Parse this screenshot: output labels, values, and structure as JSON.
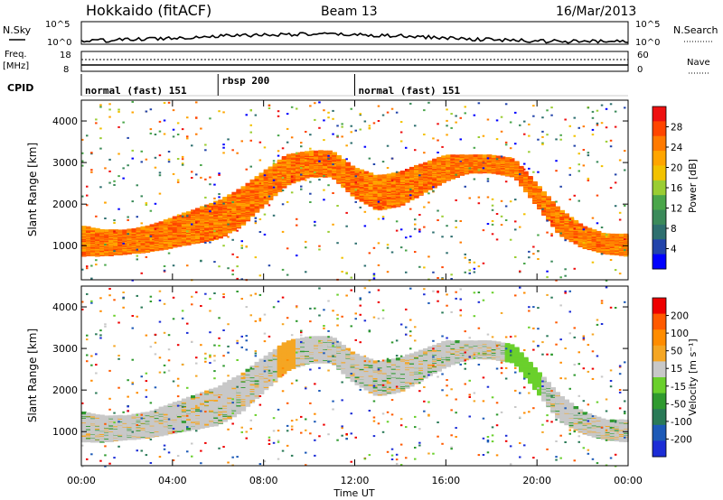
{
  "header": {
    "title": "Hokkaido (fitACF)",
    "beam": "Beam 13",
    "date": "16/Mar/2013"
  },
  "top_panels": {
    "nsky_label": "N.Sky",
    "nsky_ticks": [
      "10^5",
      "10^0"
    ],
    "nsearch_label": "N.Search",
    "nsearch_ticks": [
      "10^5",
      "10^0"
    ],
    "freq_label_1": "Freq.",
    "freq_label_2": "[MHz]",
    "freq_ticks": [
      "18",
      "8"
    ],
    "nave_label": "Nave",
    "nave_ticks": [
      "60",
      "0"
    ],
    "cpid_label": "CPID",
    "cpid_segments": [
      {
        "label": "normal (fast) 151",
        "start_hour": 0,
        "end_hour": 6.0
      },
      {
        "label": "rbsp 200",
        "start_hour": 6.0,
        "end_hour": 12.0
      },
      {
        "label": "normal (fast) 151",
        "start_hour": 12.0,
        "end_hour": 24
      }
    ]
  },
  "x_axis": {
    "label": "Time UT",
    "ticks": [
      "00:00",
      "04:00",
      "08:00",
      "12:00",
      "16:00",
      "20:00",
      "00:00"
    ]
  },
  "chart_data": [
    {
      "type": "heatmap",
      "name": "power",
      "ylabel": "Slant Range [km]",
      "yticks": [
        "1000",
        "2000",
        "3000",
        "4000"
      ],
      "ylim": [
        180,
        4500
      ],
      "xlim_hours": [
        0,
        24
      ],
      "colorbar": {
        "label": "Power [dB]",
        "ticks": [
          "4",
          "8",
          "12",
          "16",
          "20",
          "24",
          "28"
        ],
        "colors": [
          "#0000ff",
          "#2244aa",
          "#2e6f6f",
          "#3b8a5a",
          "#4aa64a",
          "#9acd32",
          "#f2c200",
          "#ffa500",
          "#ff7a00",
          "#ff4500",
          "#ee1010"
        ]
      },
      "bands": [
        {
          "hours": [
            0,
            1,
            2,
            3,
            4,
            5,
            6,
            7,
            8,
            9,
            10,
            11,
            12,
            13,
            14,
            15,
            16,
            17,
            18,
            19,
            20,
            21,
            22,
            23,
            24
          ],
          "range_low_km": [
            800,
            800,
            850,
            900,
            1000,
            1100,
            1200,
            1500,
            2000,
            2500,
            2700,
            2700,
            2200,
            1900,
            2000,
            2300,
            2600,
            2800,
            2800,
            2700,
            2000,
            1300,
            1000,
            850,
            800
          ],
          "range_high_km": [
            1500,
            1400,
            1400,
            1500,
            1700,
            1900,
            2100,
            2400,
            2800,
            3200,
            3300,
            3300,
            2900,
            2700,
            2800,
            3000,
            3200,
            3200,
            3200,
            3100,
            2500,
            1900,
            1500,
            1300,
            1300
          ]
        }
      ]
    },
    {
      "type": "heatmap",
      "name": "velocity",
      "ylabel": "Slant Range [km]",
      "yticks": [
        "1000",
        "2000",
        "3000",
        "4000"
      ],
      "ylim": [
        180,
        4500
      ],
      "xlim_hours": [
        0,
        24
      ],
      "colorbar": {
        "label": "Velocity [m s⁻¹]",
        "ticks": [
          "200",
          "100",
          "50",
          "15",
          "-15",
          "-50",
          "-100",
          "-200"
        ],
        "colors": [
          "#1c2dd6",
          "#1d5ab7",
          "#2a7a57",
          "#2f9a2f",
          "#6ad02c",
          "#c8c8c8",
          "#f5a623",
          "#ff8c00",
          "#ff5a00",
          "#ee0000"
        ]
      }
    }
  ]
}
